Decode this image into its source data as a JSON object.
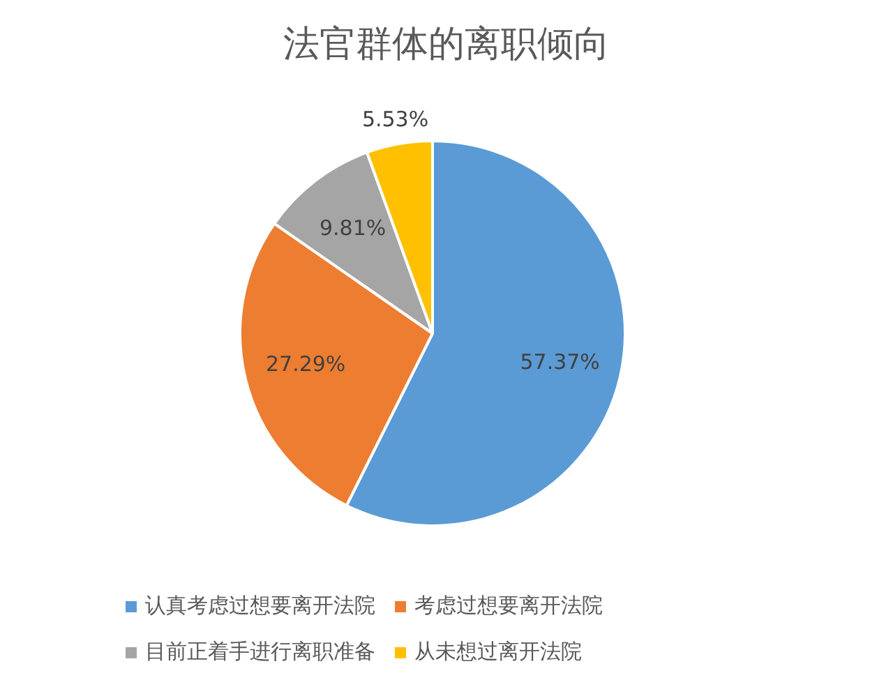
{
  "chart_data": {
    "type": "pie",
    "title": "法官群体的离职倾向",
    "categories": [
      "认真考虑过想要离开法院",
      "考虑过想要离开法院",
      "目前正着手进行离职准备",
      "从未想过离开法院"
    ],
    "values": [
      57.37,
      27.29,
      9.81,
      5.53
    ],
    "colors": [
      "#5b9bd5",
      "#ed7d31",
      "#a5a5a5",
      "#ffc000"
    ],
    "value_labels": [
      "57.37%",
      "27.29%",
      "9.81%",
      "5.53%"
    ],
    "legend": "bottom"
  }
}
